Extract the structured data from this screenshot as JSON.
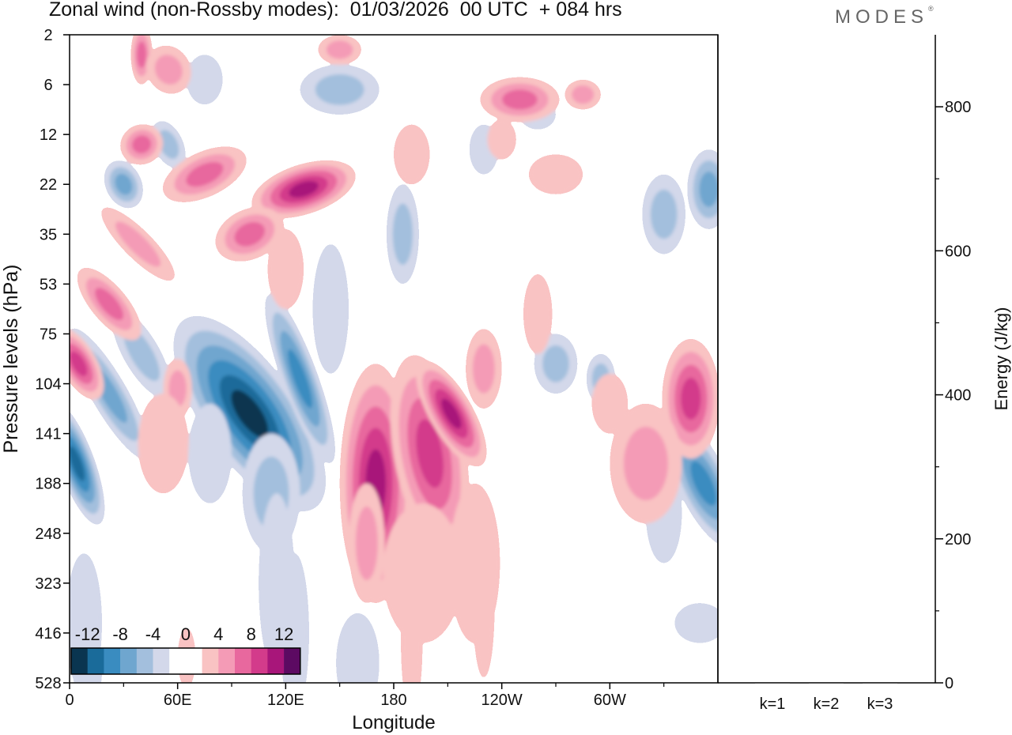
{
  "header": {
    "title": "Zonal wind (non-Rossby modes):  01/03/2026  00 UTC  + 084 hrs",
    "logo": "MODES",
    "logo_mark": "®"
  },
  "chart_data": [
    {
      "type": "heatmap",
      "title": "Zonal wind (non-Rossby modes):  01/03/2026  00 UTC  + 084 hrs",
      "xlabel": "Longitude",
      "ylabel": "Pressure levels (hPa)",
      "x_ticks": [
        "0",
        "60E",
        "120E",
        "180",
        "120W",
        "60W"
      ],
      "y_ticks": [
        "2",
        "6",
        "12",
        "22",
        "35",
        "53",
        "75",
        "104",
        "141",
        "188",
        "248",
        "323",
        "416",
        "528"
      ],
      "colorbar": {
        "labels": [
          "-12",
          "-8",
          "-4",
          "0",
          "4",
          "8",
          "12"
        ],
        "colors": [
          "#0a3550",
          "#1a6b9a",
          "#3a8cc0",
          "#6fa6cf",
          "#a3bfdd",
          "#d3d8ea",
          "#ffffff",
          "#ffffff",
          "#f9c3c3",
          "#f49bb6",
          "#e8689e",
          "#d33b8b",
          "#a8167a",
          "#5c0a62"
        ]
      },
      "features": [
        {
          "label": "blue core",
          "lon": 100,
          "level": "114",
          "value": -14
        },
        {
          "label": "blue core",
          "lon": 128,
          "level": "92",
          "value": -12
        },
        {
          "label": "blue core",
          "lon": 3,
          "level": "170",
          "value": -12
        },
        {
          "label": "blue core",
          "lon": 355,
          "level": "175",
          "value": -12
        },
        {
          "label": "blue core",
          "lon": 30,
          "level": "120",
          "value": -8
        },
        {
          "label": "pink core",
          "lon": 165,
          "level": "170",
          "value": 10
        },
        {
          "label": "pink core",
          "lon": 202,
          "level": "120",
          "value": 10
        },
        {
          "label": "pink core",
          "lon": 183,
          "level": "160",
          "value": 8
        },
        {
          "label": "pink core",
          "lon": 1,
          "level": "96",
          "value": 8
        },
        {
          "label": "pink core",
          "lon": 355,
          "level": "104",
          "value": 8
        },
        {
          "label": "pink tilted band",
          "lon": 135,
          "level": "25",
          "value": 10
        },
        {
          "label": "pink core",
          "lon": 45,
          "level": "14",
          "value": 6
        }
      ]
    },
    {
      "type": "bar",
      "categories": [
        "k=1",
        "k=2",
        "k=3"
      ],
      "values": [
        1,
        1,
        1
      ],
      "ylabel": "Energy (J/kg)",
      "ylim": [
        0,
        900
      ],
      "y_ticks": [
        "0",
        "200",
        "400",
        "600",
        "800"
      ]
    }
  ]
}
